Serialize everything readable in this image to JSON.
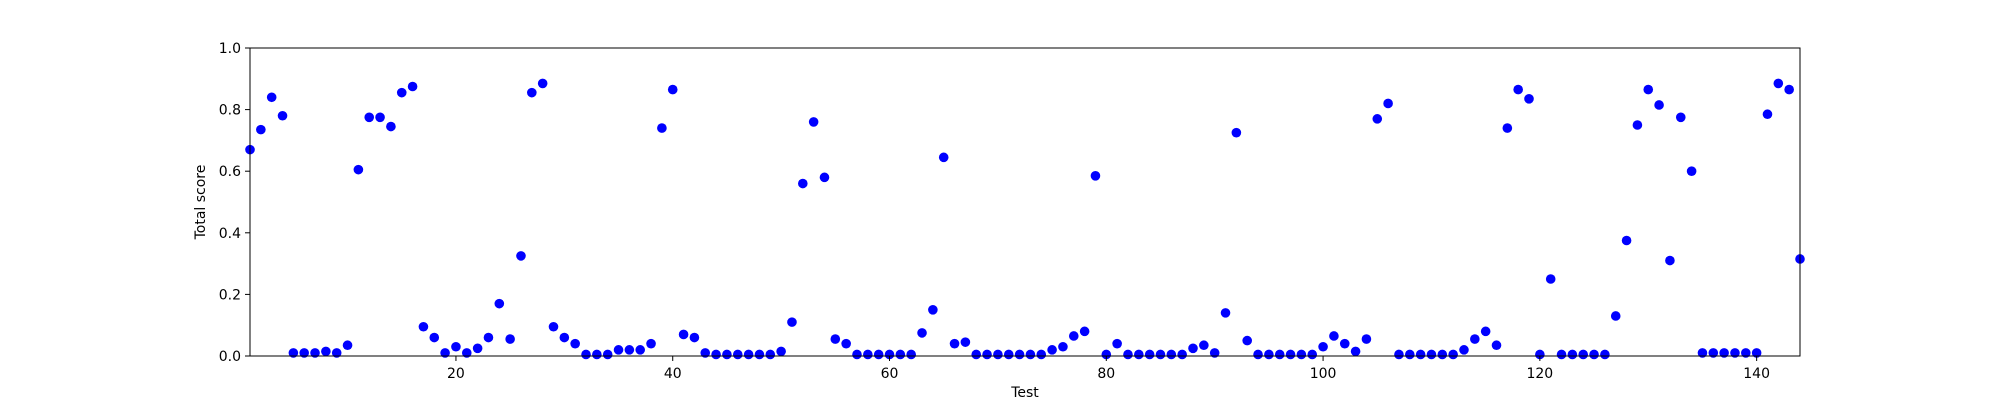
{
  "chart_data": {
    "type": "scatter",
    "title": "",
    "xlabel": "Test",
    "ylabel": "Total score",
    "xlim": [
      1,
      144
    ],
    "ylim": [
      0,
      1.0
    ],
    "xticks": [
      20,
      40,
      60,
      80,
      100,
      120,
      140
    ],
    "yticks": [
      0.0,
      0.2,
      0.4,
      0.6,
      0.8,
      1.0
    ],
    "xtick_labels": [
      "20",
      "40",
      "60",
      "80",
      "100",
      "120",
      "140"
    ],
    "ytick_labels": [
      "0.0",
      "0.2",
      "0.4",
      "0.6",
      "0.8",
      "1.0"
    ],
    "grid": false,
    "marker_color": "#0000ff",
    "series": [
      {
        "x": [
          1,
          2,
          3,
          4,
          5,
          6,
          7,
          8,
          9,
          10,
          11,
          12,
          13,
          14,
          15,
          16,
          17,
          18,
          19,
          20,
          21,
          22,
          23,
          24,
          25,
          26,
          27,
          28,
          29,
          30,
          31,
          32,
          33,
          34,
          35,
          36,
          37,
          38,
          39,
          40,
          41,
          42,
          43,
          44,
          45,
          46,
          47,
          48,
          49,
          50,
          51,
          52,
          53,
          54,
          55,
          56,
          57,
          58,
          59,
          60,
          61,
          62,
          63,
          64,
          65,
          66,
          67,
          68,
          69,
          70,
          71,
          72,
          73,
          74,
          75,
          76,
          77,
          78,
          79,
          80,
          81,
          82,
          83,
          84,
          85,
          86,
          87,
          88,
          89,
          90,
          91,
          92,
          93,
          94,
          95,
          96,
          97,
          98,
          99,
          100,
          101,
          102,
          103,
          104,
          105,
          106,
          107,
          108,
          109,
          110,
          111,
          112,
          113,
          114,
          115,
          116,
          117,
          118,
          119,
          120,
          121,
          122,
          123,
          124,
          125,
          126,
          127,
          128,
          129,
          130,
          131,
          132,
          133,
          134,
          135,
          136,
          137,
          138,
          139,
          140,
          141,
          142,
          143,
          144
        ],
        "y": [
          0.67,
          0.735,
          0.84,
          0.78,
          0.01,
          0.01,
          0.01,
          0.015,
          0.01,
          0.035,
          0.605,
          0.775,
          0.775,
          0.745,
          0.855,
          0.875,
          0.095,
          0.06,
          0.01,
          0.03,
          0.01,
          0.025,
          0.06,
          0.17,
          0.055,
          0.325,
          0.855,
          0.885,
          0.095,
          0.06,
          0.04,
          0.005,
          0.005,
          0.005,
          0.02,
          0.02,
          0.02,
          0.04,
          0.74,
          0.865,
          0.07,
          0.06,
          0.01,
          0.005,
          0.005,
          0.005,
          0.005,
          0.005,
          0.005,
          0.015,
          0.11,
          0.56,
          0.76,
          0.58,
          0.055,
          0.04,
          0.005,
          0.005,
          0.005,
          0.005,
          0.005,
          0.005,
          0.075,
          0.15,
          0.645,
          0.04,
          0.045,
          0.005,
          0.005,
          0.005,
          0.005,
          0.005,
          0.005,
          0.005,
          0.02,
          0.03,
          0.065,
          0.08,
          0.585,
          0.005,
          0.04,
          0.005,
          0.005,
          0.005,
          0.005,
          0.005,
          0.005,
          0.025,
          0.035,
          0.01,
          0.14,
          0.725,
          0.05,
          0.005,
          0.005,
          0.005,
          0.005,
          0.005,
          0.005,
          0.03,
          0.065,
          0.04,
          0.015,
          0.055,
          0.77,
          0.82,
          0.005,
          0.005,
          0.005,
          0.005,
          0.005,
          0.005,
          0.02,
          0.055,
          0.08,
          0.035,
          0.74,
          0.865,
          0.835,
          0.005,
          0.25,
          0.005,
          0.005,
          0.005,
          0.005,
          0.005,
          0.13,
          0.375,
          0.75,
          0.865,
          0.815,
          0.31,
          0.775,
          0.6,
          0.01,
          0.01,
          0.01,
          0.01,
          0.01,
          0.01,
          0.785,
          0.885,
          0.865,
          0.315
        ]
      }
    ]
  }
}
